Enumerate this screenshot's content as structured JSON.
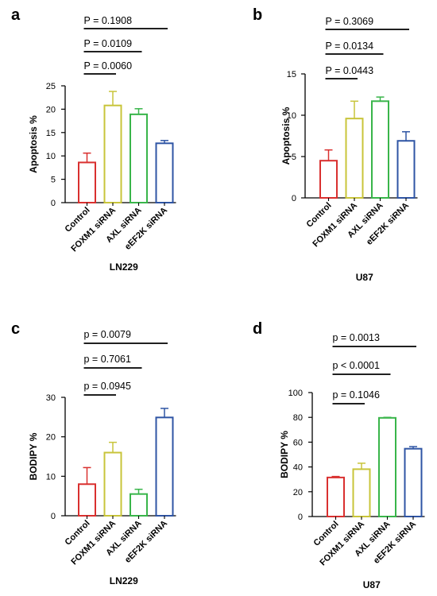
{
  "chart_data": [
    {
      "panel": "a",
      "type": "bar",
      "title": "LN229",
      "ylabel": "Apoptosis %",
      "ylim": [
        0,
        25
      ],
      "yticks": [
        0,
        5,
        10,
        15,
        20,
        25
      ],
      "categories": [
        "Control",
        "FOXM1 siRNA",
        "AXL siRNA",
        "eEF2K siRNA"
      ],
      "values": [
        8.6,
        20.8,
        18.9,
        12.7
      ],
      "errors": [
        2.0,
        3.0,
        1.2,
        0.6
      ],
      "colors": [
        "#d9302f",
        "#c8c43a",
        "#39b54a",
        "#2f55a4"
      ],
      "brackets": [
        {
          "label": "P = 0.0060",
          "from": 0,
          "to": 1
        },
        {
          "label": "P = 0.0109",
          "from": 0,
          "to": 2
        },
        {
          "label": "P = 0.1908",
          "from": 0,
          "to": 3
        }
      ]
    },
    {
      "panel": "b",
      "type": "bar",
      "title": "U87",
      "ylabel": "Apoptosis %",
      "ylim": [
        0,
        15
      ],
      "yticks": [
        0,
        5,
        10,
        15
      ],
      "categories": [
        "Control",
        "FOXM1 siRNA",
        "AXL siRNA",
        "eEF2K siRNA"
      ],
      "values": [
        4.5,
        9.6,
        11.7,
        6.9
      ],
      "errors": [
        1.3,
        2.1,
        0.5,
        1.1
      ],
      "colors": [
        "#d9302f",
        "#c8c43a",
        "#39b54a",
        "#2f55a4"
      ],
      "brackets": [
        {
          "label": "P = 0.0443",
          "from": 0,
          "to": 1
        },
        {
          "label": "P = 0.0134",
          "from": 0,
          "to": 2
        },
        {
          "label": "P = 0.3069",
          "from": 0,
          "to": 3
        }
      ]
    },
    {
      "panel": "c",
      "type": "bar",
      "title": "LN229",
      "ylabel": "BODIPY %",
      "ylim": [
        0,
        30
      ],
      "yticks": [
        0,
        10,
        20,
        30
      ],
      "categories": [
        "Control",
        "FOXM1 siRNA",
        "AXL siRNA",
        "eEF2K siRNA"
      ],
      "values": [
        8.0,
        16.0,
        5.5,
        24.9
      ],
      "errors": [
        4.2,
        2.6,
        1.2,
        2.3
      ],
      "colors": [
        "#d9302f",
        "#c8c43a",
        "#39b54a",
        "#2f55a4"
      ],
      "brackets": [
        {
          "label": "p = 0.0945",
          "from": 0,
          "to": 1
        },
        {
          "label": "p = 0.7061",
          "from": 0,
          "to": 2
        },
        {
          "label": "p = 0.0079",
          "from": 0,
          "to": 3
        }
      ]
    },
    {
      "panel": "d",
      "type": "bar",
      "title": "U87",
      "ylabel": "BODIPY %",
      "ylim": [
        0,
        100
      ],
      "yticks": [
        0,
        20,
        40,
        60,
        80,
        100
      ],
      "categories": [
        "Control",
        "FOXM1 siRNA",
        "AXL siRNA",
        "eEF2K siRNA"
      ],
      "values": [
        31.5,
        38.2,
        79.6,
        54.7
      ],
      "errors": [
        0.8,
        4.8,
        0.4,
        1.7
      ],
      "colors": [
        "#d9302f",
        "#c8c43a",
        "#39b54a",
        "#2f55a4"
      ],
      "brackets": [
        {
          "label": "p = 0.1046",
          "from": 0,
          "to": 1
        },
        {
          "label": "p < 0.0001",
          "from": 0,
          "to": 2
        },
        {
          "label": "p = 0.0013",
          "from": 0,
          "to": 3
        }
      ]
    }
  ]
}
